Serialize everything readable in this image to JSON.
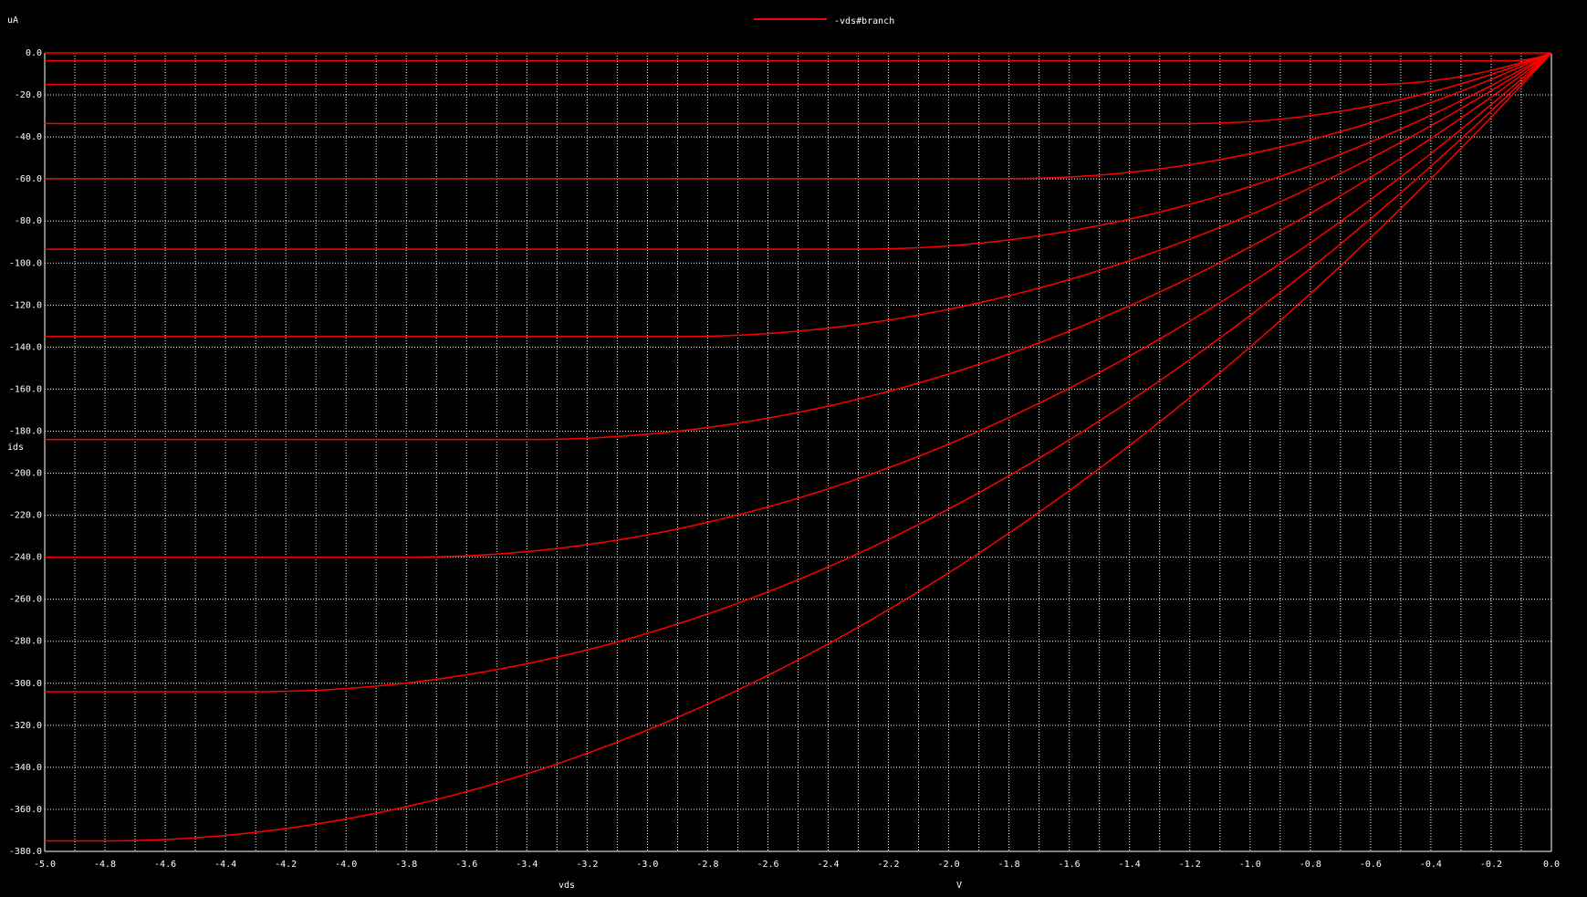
{
  "legend": {
    "label": "-vds#branch",
    "color": "#ff0000"
  },
  "colors": {
    "background": "#000000",
    "grid": "#ffffff",
    "axis_text": "#ffffff",
    "trace": "#ff0000"
  },
  "chart_data": {
    "type": "line",
    "title": "",
    "xlabel": "vds",
    "xunit": "V",
    "ylabel": "ids",
    "yunit": "uA",
    "xlim": [
      -5.0,
      0.0
    ],
    "ylim": [
      -380.0,
      0.0
    ],
    "grid": true,
    "legend_position": "top-center",
    "x_ticks": [
      -5.0,
      -4.8,
      -4.6,
      -4.4,
      -4.2,
      -4.0,
      -3.8,
      -3.6,
      -3.4,
      -3.2,
      -3.0,
      -2.8,
      -2.6,
      -2.4,
      -2.2,
      -2.0,
      -1.8,
      -1.6,
      -1.4,
      -1.2,
      -1.0,
      -0.8,
      -0.6,
      -0.4,
      -0.2,
      0.0
    ],
    "x_tick_labels": [
      "-5.0",
      "-4.8",
      "-4.6",
      "-4.4",
      "-4.2",
      "-4.0",
      "-3.8",
      "-3.6",
      "-3.4",
      "-3.2",
      "-3.0",
      "-2.8",
      "-2.6",
      "-2.4",
      "-2.2",
      "-2.0",
      "-1.8",
      "-1.6",
      "-1.4",
      "-1.2",
      "-1.0",
      "-0.8",
      "-0.6",
      "-0.4",
      "-0.2",
      "0.0"
    ],
    "y_ticks": [
      0,
      -20,
      -40,
      -60,
      -80,
      -100,
      -120,
      -140,
      -160,
      -180,
      -200,
      -220,
      -240,
      -260,
      -280,
      -300,
      -320,
      -340,
      -360,
      -380
    ],
    "y_tick_labels": [
      "0.0",
      "-20.0",
      "-40.0",
      "-60.0",
      "-80.0",
      "-100.0",
      "-120.0",
      "-140.0",
      "-160.0",
      "-180.0",
      "-200.0",
      "-220.0",
      "-240.0",
      "-260.0",
      "-280.0",
      "-300.0",
      "-320.0",
      "-340.0",
      "-360.0",
      "-380.0"
    ],
    "x_grid_step": 0.1,
    "series": [
      {
        "sat_current": 0.0,
        "vdsat": 0.0
      },
      {
        "sat_current": -3.7,
        "vdsat": -0.13
      },
      {
        "sat_current": -15.0,
        "vdsat": -0.6
      },
      {
        "sat_current": -33.6,
        "vdsat": -1.2
      },
      {
        "sat_current": -59.8,
        "vdsat": -1.8
      },
      {
        "sat_current": -93.4,
        "vdsat": -2.3
      },
      {
        "sat_current": -135.0,
        "vdsat": -2.9
      },
      {
        "sat_current": -184.0,
        "vdsat": -3.4
      },
      {
        "sat_current": -240.0,
        "vdsat": -3.8
      },
      {
        "sat_current": -304.0,
        "vdsat": -4.3
      },
      {
        "sat_current": -375.0,
        "vdsat": -4.8
      }
    ]
  }
}
